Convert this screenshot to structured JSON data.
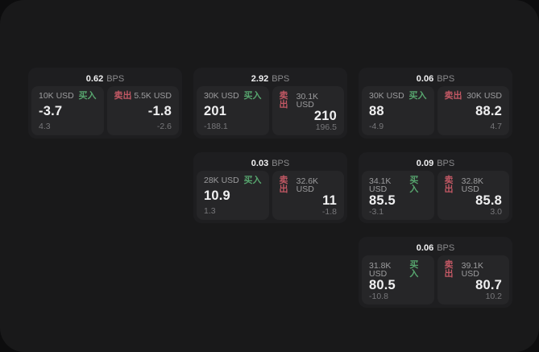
{
  "labels": {
    "bps": "BPS",
    "buy": "买入",
    "sell": "卖出"
  },
  "colors": {
    "buy": "#57a56e",
    "sell": "#c25864",
    "background": "#0d0d0e",
    "surface": "#19191a",
    "card": "#1e1e20",
    "tile": "#262628"
  },
  "cards": [
    {
      "bps": "0.62",
      "buy": {
        "amount": "10K USD",
        "price": "-3.7",
        "sub": "4.3"
      },
      "sell": {
        "amount": "5.5K USD",
        "price": "-1.8",
        "sub": "-2.6"
      }
    },
    {
      "bps": "2.92",
      "buy": {
        "amount": "30K USD",
        "price": "201",
        "sub": "-188.1"
      },
      "sell": {
        "amount": "30.1K USD",
        "price": "210",
        "sub": "196.5"
      }
    },
    {
      "bps": "0.06",
      "buy": {
        "amount": "30K USD",
        "price": "88",
        "sub": "-4.9"
      },
      "sell": {
        "amount": "30K USD",
        "price": "88.2",
        "sub": "4.7"
      }
    },
    {
      "bps": "0.03",
      "buy": {
        "amount": "28K USD",
        "price": "10.9",
        "sub": "1.3"
      },
      "sell": {
        "amount": "32.6K USD",
        "price": "11",
        "sub": "-1.8"
      }
    },
    {
      "bps": "0.09",
      "buy": {
        "amount": "34.1K USD",
        "price": "85.5",
        "sub": "-3.1"
      },
      "sell": {
        "amount": "32.8K USD",
        "price": "85.8",
        "sub": "3.0"
      }
    },
    {
      "bps": "0.06",
      "buy": {
        "amount": "31.8K USD",
        "price": "80.5",
        "sub": "-10.8"
      },
      "sell": {
        "amount": "39.1K USD",
        "price": "80.7",
        "sub": "10.2"
      }
    }
  ]
}
